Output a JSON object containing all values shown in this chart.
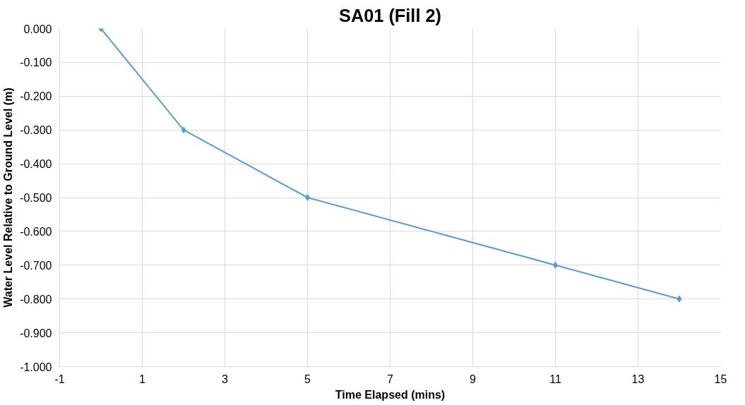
{
  "chart_data": {
    "type": "line",
    "title": "SA01 (Fill 2)",
    "xlabel": "Time Elapsed (mins)",
    "ylabel": "Water Level Relative to Ground Level (m)",
    "x": [
      0,
      2,
      5,
      11,
      14
    ],
    "series": [
      {
        "color": "#5b9bd5",
        "values": [
          0,
          -0.3,
          -0.5,
          -0.7,
          -0.8
        ]
      }
    ],
    "xlim": [
      -1,
      15
    ],
    "xticks": [
      -1,
      1,
      3,
      5,
      7,
      9,
      11,
      13,
      15
    ],
    "ylim": [
      -1,
      0
    ],
    "yticks": [
      {
        "value": 0,
        "label": "0.000"
      },
      {
        "value": -0.1,
        "label": "-0.100"
      },
      {
        "value": -0.2,
        "label": "-0.200"
      },
      {
        "value": -0.3,
        "label": "-0.300"
      },
      {
        "value": -0.4,
        "label": "-0.400"
      },
      {
        "value": -0.5,
        "label": "-0.500"
      },
      {
        "value": -0.6,
        "label": "-0.600"
      },
      {
        "value": -0.7,
        "label": "-0.700"
      },
      {
        "value": -0.8,
        "label": "-0.800"
      },
      {
        "value": -0.9,
        "label": "-0.900"
      },
      {
        "value": -1,
        "label": "-1.000"
      }
    ],
    "grid": true,
    "marker": "diamond",
    "line_style": "solid"
  }
}
